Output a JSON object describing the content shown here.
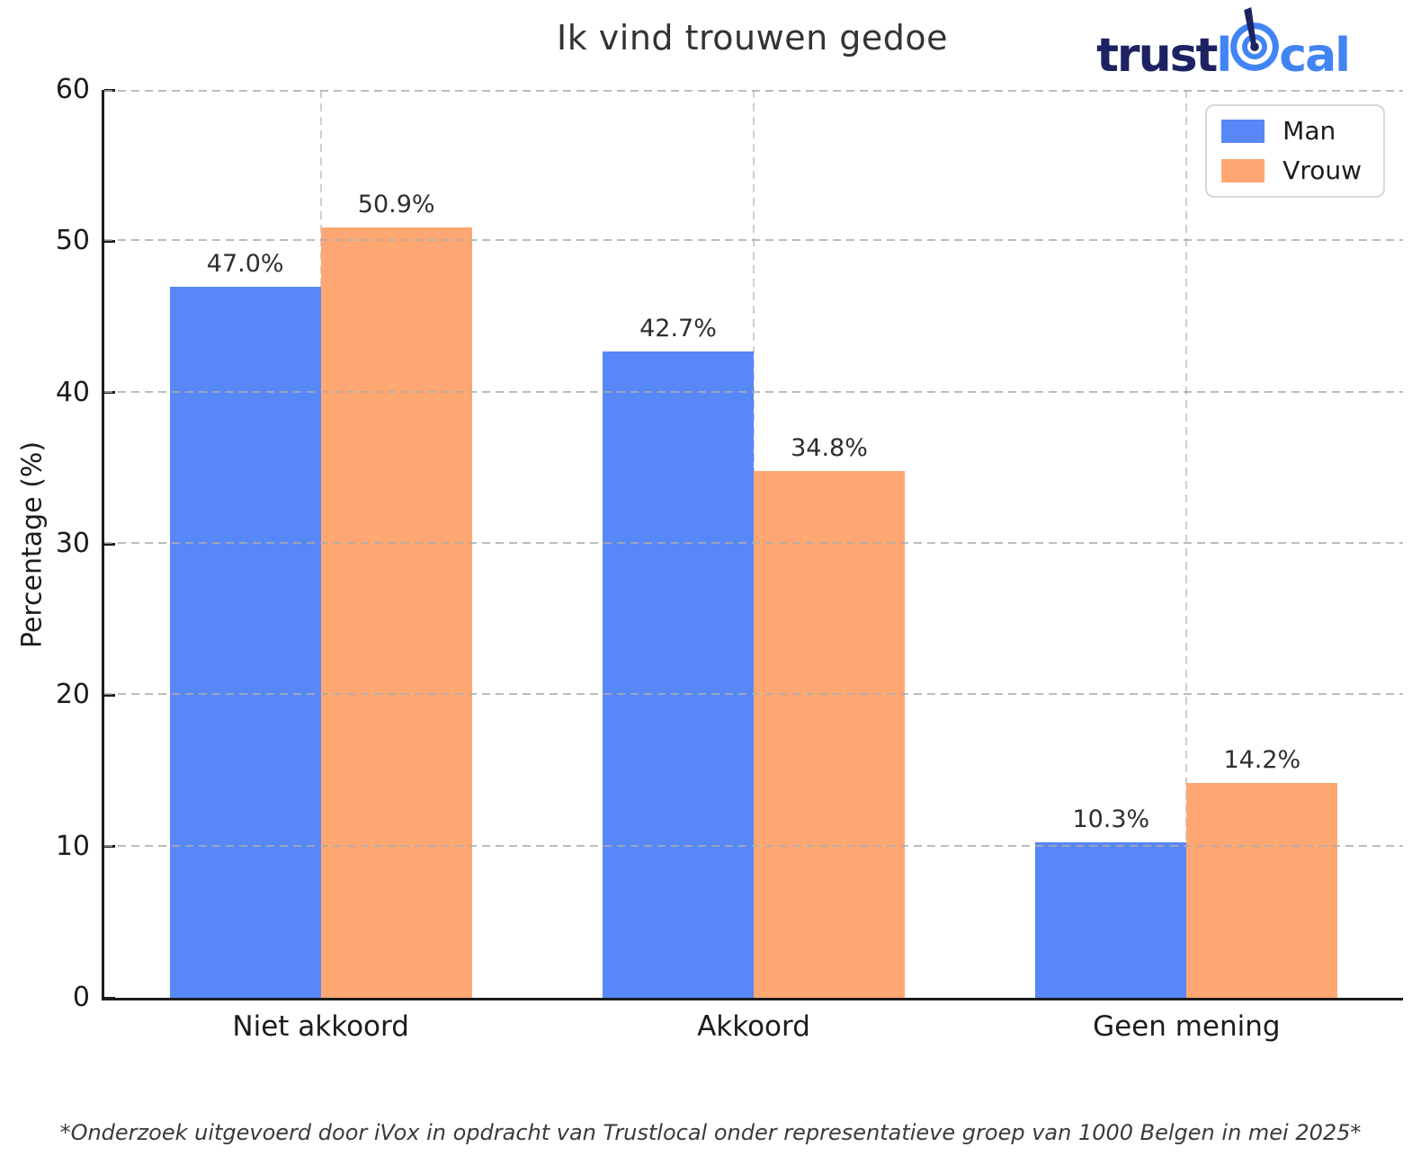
{
  "logo": {
    "text_dark": "trust",
    "text_l": "l",
    "text_tail": "cal",
    "dark_color": "#1d2263",
    "blue_color": "#4184f4",
    "icon": "target-dart-icon"
  },
  "chart_data": {
    "type": "bar",
    "title": "Ik vind trouwen gedoe",
    "categories": [
      "Niet akkoord",
      "Akkoord",
      "Geen mening"
    ],
    "series": [
      {
        "name": "Man",
        "color": "#5887f7",
        "values": [
          47.0,
          42.7,
          10.3
        ]
      },
      {
        "name": "Vrouw",
        "color": "#ffa773",
        "values": [
          50.9,
          34.8,
          14.2
        ]
      }
    ],
    "xlabel": "",
    "ylabel": "Percentage (%)",
    "ylim": [
      0,
      60
    ],
    "yticks": [
      0,
      10,
      20,
      30,
      40,
      50,
      60
    ],
    "grid": true,
    "grid_style": "dashed",
    "legend_position": "upper right",
    "bar_width_fraction": 0.35,
    "bar_value_suffix": "%",
    "annotation": "*Onderzoek uitgevoerd door iVox in opdracht van Trustlocal onder representatieve groep van 1000 Belgen in mei 2025*"
  }
}
